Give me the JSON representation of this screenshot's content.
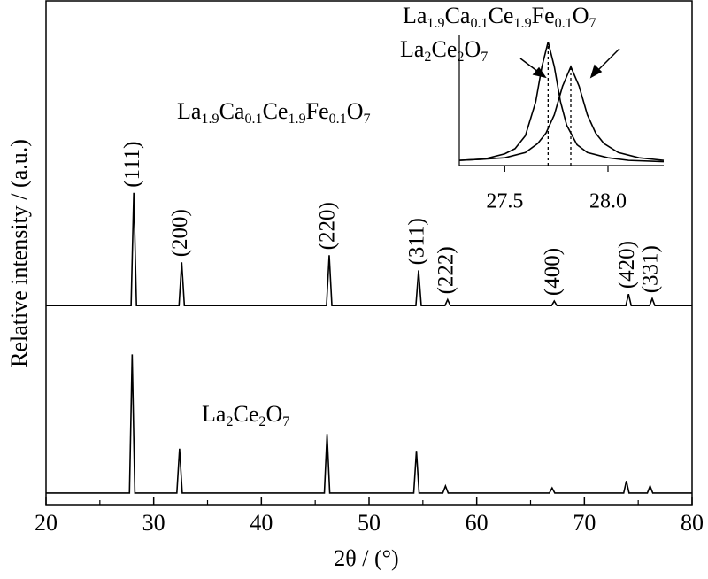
{
  "chart_data": [
    {
      "type": "line",
      "x_label": "2θ / (°)",
      "y_label": "Relative intensity / (a.u.)",
      "xlim": [
        20,
        80
      ],
      "xticks": [
        20,
        30,
        40,
        50,
        60,
        70,
        80
      ],
      "xticks_minor": [
        25,
        35,
        45,
        55,
        65,
        75
      ],
      "ylim": [
        0,
        100
      ],
      "series": [
        {
          "name": "La2Ce2O7",
          "color": "#000000",
          "x": [
            20,
            27.75,
            28.0,
            28.25,
            32.15,
            32.4,
            32.65,
            45.85,
            46.1,
            46.35,
            54.15,
            54.4,
            54.65,
            56.85,
            57.1,
            57.35,
            66.75,
            67.0,
            67.25,
            73.65,
            73.9,
            74.15,
            75.85,
            76.1,
            76.35,
            80
          ],
          "values": [
            2.3,
            2.3,
            29.8,
            2.3,
            2.3,
            11.1,
            2.3,
            2.3,
            14.0,
            2.3,
            2.3,
            10.7,
            2.3,
            2.3,
            3.7,
            2.3,
            2.3,
            3.3,
            2.3,
            2.3,
            4.7,
            2.3,
            2.3,
            3.7,
            2.3,
            2.3
          ]
        },
        {
          "name": "La1.9Ca0.1Ce1.9Fe0.1O7",
          "color": "#000000",
          "x": [
            20,
            27.9,
            28.15,
            28.4,
            32.35,
            32.6,
            32.85,
            46.05,
            46.3,
            46.55,
            54.35,
            54.6,
            54.85,
            57.05,
            57.3,
            57.55,
            66.95,
            67.2,
            67.45,
            73.85,
            74.1,
            74.35,
            76.05,
            76.3,
            76.55,
            80
          ],
          "values": [
            39.5,
            39.5,
            61.9,
            39.5,
            39.5,
            48.1,
            39.5,
            39.5,
            49.5,
            39.5,
            39.5,
            46.5,
            39.5,
            39.5,
            40.7,
            39.5,
            39.5,
            40.4,
            39.5,
            39.5,
            41.8,
            39.5,
            39.5,
            40.9,
            39.5,
            39.5
          ]
        }
      ],
      "annotations": [
        {
          "text": "(111)",
          "x": 28.15
        },
        {
          "text": "(200)",
          "x": 32.6
        },
        {
          "text": "(220)",
          "x": 46.3
        },
        {
          "text": "(311)",
          "x": 54.6
        },
        {
          "text": "(222)",
          "x": 57.3
        },
        {
          "text": "(400)",
          "x": 67.2
        },
        {
          "text": "(420)",
          "x": 74.1
        },
        {
          "text": "(331)",
          "x": 76.3
        }
      ]
    },
    {
      "type": "line",
      "xlim": [
        27.28,
        28.27
      ],
      "xticks": [
        27.5,
        {
          "value": 28,
          "label": "28.0"
        }
      ],
      "ylim": [
        0,
        1
      ],
      "series": [
        {
          "name": "La2Ce2O7",
          "color": "#000000",
          "peak": 27.71,
          "x": [
            27.28,
            27.4,
            27.5,
            27.55,
            27.6,
            27.65,
            27.68,
            27.71,
            27.74,
            27.77,
            27.8,
            27.85,
            27.9,
            28.0,
            28.1,
            28.27
          ],
          "values": [
            0.04,
            0.05,
            0.09,
            0.13,
            0.23,
            0.49,
            0.76,
            0.95,
            0.76,
            0.49,
            0.31,
            0.16,
            0.1,
            0.06,
            0.04,
            0.03
          ]
        },
        {
          "name": "La1.9Ca0.1Ce1.9Fe0.1O7",
          "color": "#000000",
          "peak": 27.82,
          "x": [
            27.28,
            27.4,
            27.5,
            27.6,
            27.66,
            27.7,
            27.74,
            27.78,
            27.82,
            27.86,
            27.9,
            27.94,
            27.98,
            28.05,
            28.15,
            28.27
          ],
          "values": [
            0.04,
            0.05,
            0.06,
            0.1,
            0.17,
            0.25,
            0.39,
            0.61,
            0.76,
            0.61,
            0.39,
            0.25,
            0.17,
            0.1,
            0.06,
            0.04
          ]
        }
      ]
    }
  ]
}
